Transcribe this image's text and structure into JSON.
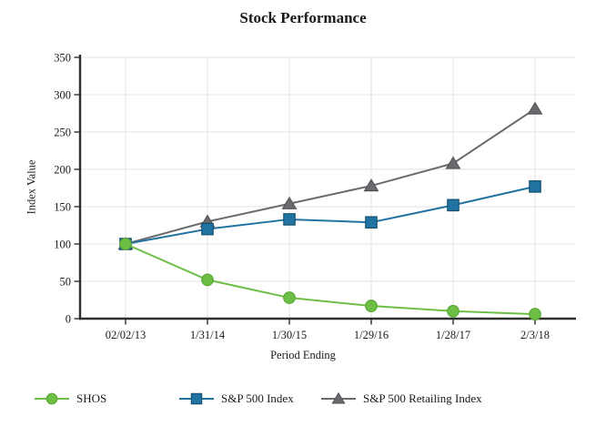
{
  "colors": {
    "axis": "#2e2e2e",
    "grid": "#e3e3e3",
    "text": "#1a1a1a",
    "background": "#ffffff"
  },
  "chart_data": {
    "type": "line",
    "title": "Stock Performance",
    "xlabel": "Period Ending",
    "ylabel": "Index Value",
    "x": [
      "02/02/13",
      "1/31/14",
      "1/30/15",
      "1/29/16",
      "1/28/17",
      "2/3/18"
    ],
    "series": [
      {
        "name": "SHOS",
        "marker": "circle",
        "color": "#6cbe45",
        "border": "#59a936",
        "values": [
          100,
          52,
          28,
          17,
          10,
          6
        ]
      },
      {
        "name": "S&P 500 Index",
        "marker": "square",
        "color": "#2173a2",
        "border": "#15506f",
        "values": [
          100,
          120,
          133,
          129,
          152,
          177
        ]
      },
      {
        "name": "S&P 500 Retailing Index",
        "marker": "triangle",
        "color": "#6a6a6e",
        "border": "#565659",
        "values": [
          100,
          130,
          154,
          178,
          208,
          281
        ]
      }
    ],
    "ylim": [
      0,
      350
    ],
    "yticks": [
      0,
      50,
      100,
      150,
      200,
      250,
      300,
      350
    ],
    "grid": true,
    "legend_position": "bottom"
  }
}
